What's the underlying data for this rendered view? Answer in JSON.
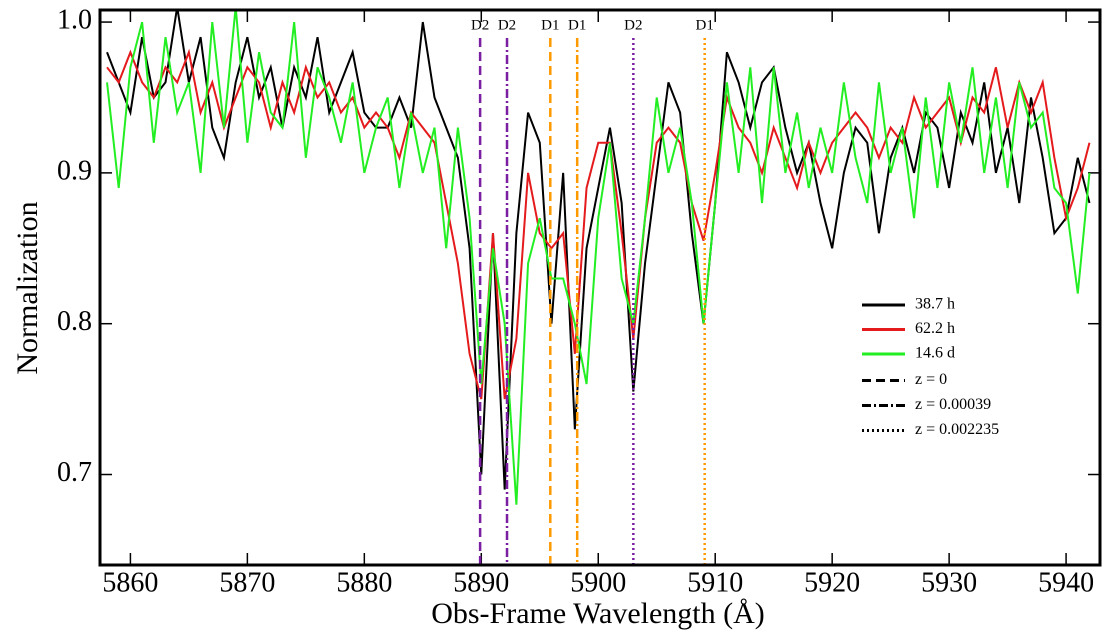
{
  "chart_data": {
    "type": "line",
    "xlabel": "Obs-Frame Wavelength (Å)",
    "ylabel": "Normalization",
    "xlim": [
      5857.4,
      5942.9
    ],
    "ylim": [
      0.64,
      1.008
    ],
    "xticks": [
      5860,
      5870,
      5880,
      5890,
      5900,
      5910,
      5920,
      5930,
      5940
    ],
    "yticks": [
      0.7,
      0.8,
      0.9,
      {
        "value": 1.0,
        "label": "1.0"
      }
    ],
    "x": [
      5858,
      5859,
      5860,
      5861,
      5862,
      5863,
      5864,
      5865,
      5866,
      5867,
      5868,
      5869,
      5870,
      5871,
      5872,
      5873,
      5874,
      5875,
      5876,
      5877,
      5878,
      5879,
      5880,
      5881,
      5882,
      5883,
      5884,
      5885,
      5886,
      5887,
      5888,
      5889,
      5890,
      5891,
      5892,
      5893,
      5894,
      5895,
      5896,
      5897,
      5898,
      5899,
      5900,
      5901,
      5902,
      5903,
      5904,
      5905,
      5906,
      5907,
      5908,
      5909,
      5910,
      5911,
      5912,
      5913,
      5914,
      5915,
      5916,
      5917,
      5918,
      5919,
      5920,
      5921,
      5922,
      5923,
      5924,
      5925,
      5926,
      5927,
      5928,
      5929,
      5930,
      5931,
      5932,
      5933,
      5934,
      5935,
      5936,
      5937,
      5938,
      5939,
      5940,
      5941,
      5942
    ],
    "series": [
      {
        "name": "38.7 h",
        "color": "#000000",
        "values": [
          0.98,
          0.96,
          0.94,
          0.99,
          0.95,
          0.96,
          1.01,
          0.96,
          0.99,
          0.93,
          0.91,
          0.96,
          0.99,
          0.95,
          0.97,
          0.93,
          0.97,
          0.95,
          0.99,
          0.94,
          0.96,
          0.98,
          0.94,
          0.93,
          0.93,
          0.95,
          0.93,
          1.0,
          0.95,
          0.93,
          0.91,
          0.85,
          0.7,
          0.86,
          0.69,
          0.86,
          0.94,
          0.92,
          0.8,
          0.9,
          0.73,
          0.85,
          0.89,
          0.93,
          0.88,
          0.755,
          0.84,
          0.9,
          0.96,
          0.94,
          0.86,
          0.8,
          0.88,
          0.98,
          0.96,
          0.93,
          0.96,
          0.97,
          0.93,
          0.9,
          0.92,
          0.88,
          0.85,
          0.9,
          0.93,
          0.92,
          0.86,
          0.91,
          0.93,
          0.9,
          0.94,
          0.93,
          0.89,
          0.94,
          0.92,
          0.96,
          0.9,
          0.93,
          0.88,
          0.95,
          0.91,
          0.86,
          0.87,
          0.91,
          0.88
        ]
      },
      {
        "name": "62.2 h",
        "color": "#e41a1c",
        "values": [
          0.97,
          0.96,
          0.98,
          0.96,
          0.95,
          0.97,
          0.96,
          0.98,
          0.94,
          0.96,
          0.93,
          0.95,
          0.97,
          0.96,
          0.93,
          0.96,
          0.94,
          0.97,
          0.95,
          0.96,
          0.94,
          0.95,
          0.93,
          0.94,
          0.93,
          0.91,
          0.94,
          0.93,
          0.92,
          0.88,
          0.84,
          0.78,
          0.75,
          0.86,
          0.75,
          0.79,
          0.9,
          0.86,
          0.85,
          0.86,
          0.78,
          0.89,
          0.92,
          0.92,
          0.86,
          0.79,
          0.87,
          0.92,
          0.93,
          0.92,
          0.88,
          0.855,
          0.9,
          0.95,
          0.93,
          0.92,
          0.9,
          0.93,
          0.91,
          0.89,
          0.92,
          0.9,
          0.92,
          0.93,
          0.94,
          0.93,
          0.91,
          0.93,
          0.92,
          0.95,
          0.93,
          0.94,
          0.95,
          0.92,
          0.95,
          0.94,
          0.97,
          0.93,
          0.96,
          0.94,
          0.96,
          0.91,
          0.87,
          0.89,
          0.92
        ]
      },
      {
        "name": "14.6 d",
        "color": "#22ee22",
        "values": [
          0.96,
          0.89,
          0.97,
          1.0,
          0.92,
          0.99,
          0.94,
          0.96,
          0.9,
          1.0,
          0.93,
          1.01,
          0.92,
          0.98,
          0.94,
          0.93,
          1.0,
          0.91,
          0.97,
          0.95,
          0.92,
          0.96,
          0.9,
          0.93,
          0.95,
          0.89,
          0.94,
          0.9,
          0.93,
          0.85,
          0.93,
          0.87,
          0.76,
          0.85,
          0.8,
          0.68,
          0.84,
          0.87,
          0.83,
          0.83,
          0.8,
          0.76,
          0.87,
          0.92,
          0.83,
          0.8,
          0.87,
          0.95,
          0.9,
          0.93,
          0.88,
          0.8,
          0.88,
          0.96,
          0.9,
          0.97,
          0.88,
          0.97,
          0.9,
          0.94,
          0.89,
          0.93,
          0.9,
          0.96,
          0.91,
          0.88,
          0.96,
          0.9,
          0.93,
          0.87,
          0.95,
          0.89,
          0.96,
          0.92,
          0.97,
          0.9,
          0.95,
          0.89,
          0.96,
          0.93,
          0.94,
          0.89,
          0.88,
          0.82,
          0.9
        ]
      }
    ],
    "vlines": [
      {
        "x": 5889.9,
        "label": "D2",
        "color": "#7b1fa2",
        "style": "dashed"
      },
      {
        "x": 5892.2,
        "label": "D2",
        "color": "#7b1fa2",
        "style": "dashdot"
      },
      {
        "x": 5895.9,
        "label": "D1",
        "color": "#ff9900",
        "style": "dashed"
      },
      {
        "x": 5898.2,
        "label": "D1",
        "color": "#ff9900",
        "style": "dashdot"
      },
      {
        "x": 5903.0,
        "label": "D2",
        "color": "#7b1fa2",
        "style": "dotted"
      },
      {
        "x": 5909.1,
        "label": "D1",
        "color": "#ff9900",
        "style": "dotted"
      }
    ],
    "style_legend": [
      {
        "label": "z = 0",
        "style": "dashed"
      },
      {
        "label": "z = 0.00039",
        "style": "dashdot"
      },
      {
        "label": "z = 0.002235",
        "style": "dotted"
      }
    ]
  }
}
